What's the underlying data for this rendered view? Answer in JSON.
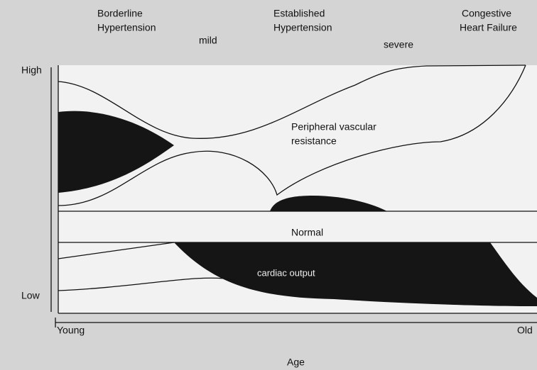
{
  "stages": {
    "borderline": [
      "Borderline",
      "Hypertension"
    ],
    "mild": "mild",
    "established": [
      "Established",
      "Hypertension"
    ],
    "severe": "severe",
    "heart_failure": [
      "Congestive",
      "Heart Failure"
    ]
  },
  "curves": {
    "resistance": [
      "Peripheral vascular",
      "resistance"
    ],
    "normal": "Normal",
    "cardiac_output": "cardiac output"
  },
  "axes": {
    "high": "High",
    "low": "Low",
    "young": "Young",
    "old": "Old",
    "age": "Age"
  }
}
